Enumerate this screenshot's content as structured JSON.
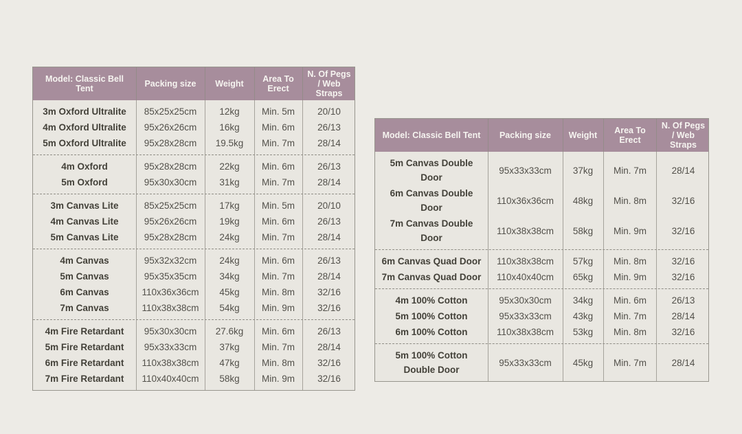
{
  "theme": {
    "page_background": "#edebe6",
    "header_background": "#a78d9c",
    "header_text_color": "#f6f4f0",
    "table_background": "#e9e7e1",
    "border_color": "#97958d",
    "text_primary": "#434139",
    "text_secondary": "#52504a"
  },
  "tables": [
    {
      "headers": [
        "Model: Classic Bell Tent",
        "Packing size",
        "Weight",
        "Area To Erect",
        "N. Of Pegs / Web Straps"
      ],
      "groups": [
        {
          "rows": [
            [
              "3m Oxford Ultralite",
              "85x25x25cm",
              "12kg",
              "Min. 5m",
              "20/10"
            ],
            [
              "4m Oxford Ultralite",
              "95x26x26cm",
              "16kg",
              "Min. 6m",
              "26/13"
            ],
            [
              "5m Oxford Ultralite",
              "95x28x28cm",
              "19.5kg",
              "Min. 7m",
              "28/14"
            ]
          ]
        },
        {
          "rows": [
            [
              "4m Oxford",
              "95x28x28cm",
              "22kg",
              "Min. 6m",
              "26/13"
            ],
            [
              "5m Oxford",
              "95x30x30cm",
              "31kg",
              "Min. 7m",
              "28/14"
            ]
          ]
        },
        {
          "rows": [
            [
              "3m Canvas Lite",
              "85x25x25cm",
              "17kg",
              "Min. 5m",
              "20/10"
            ],
            [
              "4m Canvas Lite",
              "95x26x26cm",
              "19kg",
              "Min. 6m",
              "26/13"
            ],
            [
              "5m Canvas Lite",
              "95x28x28cm",
              "24kg",
              "Min. 7m",
              "28/14"
            ]
          ]
        },
        {
          "rows": [
            [
              "4m Canvas",
              "95x32x32cm",
              "24kg",
              "Min. 6m",
              "26/13"
            ],
            [
              "5m Canvas",
              "95x35x35cm",
              "34kg",
              "Min. 7m",
              "28/14"
            ],
            [
              "6m Canvas",
              "110x36x36cm",
              "45kg",
              "Min. 8m",
              "32/16"
            ],
            [
              "7m Canvas",
              "110x38x38cm",
              "54kg",
              "Min. 9m",
              "32/16"
            ]
          ]
        },
        {
          "rows": [
            [
              "4m Fire Retardant",
              "95x30x30cm",
              "27.6kg",
              "Min. 6m",
              "26/13"
            ],
            [
              "5m Fire Retardant",
              "95x33x33cm",
              "37kg",
              "Min. 7m",
              "28/14"
            ],
            [
              "6m Fire Retardant",
              "110x38x38cm",
              "47kg",
              "Min. 8m",
              "32/16"
            ],
            [
              "7m Fire Retardant",
              "110x40x40cm",
              "58kg",
              "Min. 9m",
              "32/16"
            ]
          ]
        }
      ]
    },
    {
      "headers": [
        "Model: Classic Bell Tent",
        "Packing size",
        "Weight",
        "Area To Erect",
        "N. Of Pegs / Web Straps"
      ],
      "groups": [
        {
          "rows": [
            [
              "5m Canvas Double Door",
              "95x33x33cm",
              "37kg",
              "Min. 7m",
              "28/14"
            ],
            [
              "6m Canvas Double Door",
              "110x36x36cm",
              "48kg",
              "Min. 8m",
              "32/16"
            ],
            [
              "7m Canvas Double Door",
              "110x38x38cm",
              "58kg",
              "Min. 9m",
              "32/16"
            ]
          ]
        },
        {
          "rows": [
            [
              "6m Canvas Quad Door",
              "110x38x38cm",
              "57kg",
              "Min. 8m",
              "32/16"
            ],
            [
              "7m Canvas Quad Door",
              "110x40x40cm",
              "65kg",
              "Min. 9m",
              "32/16"
            ]
          ]
        },
        {
          "rows": [
            [
              "4m 100% Cotton",
              "95x30x30cm",
              "34kg",
              "Min. 6m",
              "26/13"
            ],
            [
              "5m 100% Cotton",
              "95x33x33cm",
              "43kg",
              "Min. 7m",
              "28/14"
            ],
            [
              "6m 100% Cotton",
              "110x38x38cm",
              "53kg",
              "Min. 8m",
              "32/16"
            ]
          ]
        },
        {
          "rows": [
            [
              "5m 100% Cotton Double Door",
              "95x33x33cm",
              "45kg",
              "Min. 7m",
              "28/14"
            ]
          ]
        }
      ]
    }
  ]
}
